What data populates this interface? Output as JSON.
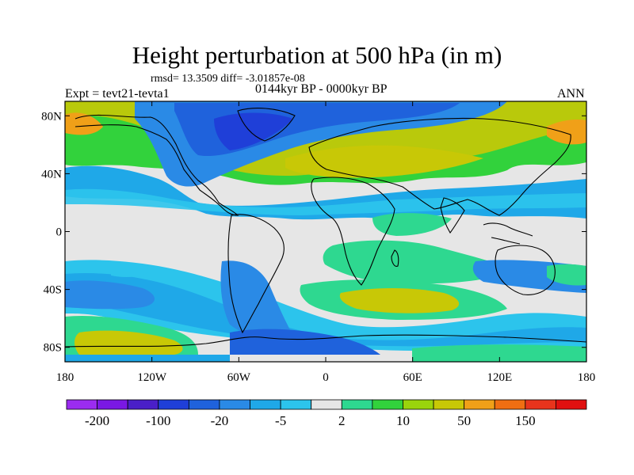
{
  "title": "Height perturbation at 500 hPa (in m)",
  "stats_line": "rmsd= 13.3509 diff= -3.01857e-08",
  "left_label": "Expt = tevt21-tevta1",
  "center_label": "0144kyr BP - 0000kyr BP",
  "right_label": "ANN",
  "map": {
    "projection": "cylindrical-equidistant",
    "lon_range": [
      -180,
      180
    ],
    "lat_range": [
      -90,
      90
    ],
    "y_ticks": [
      {
        "lat": 80,
        "label": "80N"
      },
      {
        "lat": 40,
        "label": "40N"
      },
      {
        "lat": 0,
        "label": "0"
      },
      {
        "lat": -40,
        "label": "40S"
      },
      {
        "lat": -80,
        "label": "80S"
      }
    ],
    "x_ticks": [
      {
        "lon": -180,
        "label": "180"
      },
      {
        "lon": -120,
        "label": "120W"
      },
      {
        "lon": -60,
        "label": "60W"
      },
      {
        "lon": 0,
        "label": "0"
      },
      {
        "lon": 60,
        "label": "60E"
      },
      {
        "lon": 120,
        "label": "120E"
      },
      {
        "lon": 180,
        "label": "180"
      }
    ]
  },
  "colorbar": {
    "colors": [
      "#9b2cf0",
      "#7a18e4",
      "#4a1fc8",
      "#1f3fd8",
      "#1f62dc",
      "#2a8ae6",
      "#1fa8e8",
      "#2cc4ec",
      "#e6e6e6",
      "#2ed890",
      "#32d23c",
      "#9ad40c",
      "#c8c806",
      "#f0a018",
      "#f06e12",
      "#e8341c",
      "#e01010"
    ],
    "labels": [
      {
        "after_box": 1,
        "text": "-200"
      },
      {
        "after_box": 3,
        "text": "-100"
      },
      {
        "after_box": 5,
        "text": "-20"
      },
      {
        "after_box": 7,
        "text": "-5"
      },
      {
        "after_box": 9,
        "text": "2"
      },
      {
        "after_box": 11,
        "text": "10"
      },
      {
        "after_box": 13,
        "text": "50"
      },
      {
        "after_box": 15,
        "text": "150"
      }
    ]
  }
}
